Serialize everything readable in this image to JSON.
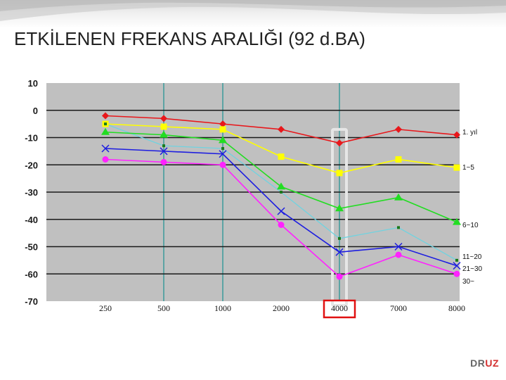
{
  "slide": {
    "title": "ETKİLENEN FREKANS ARALIĞI (92 d.BA)",
    "brand_part1": "DR",
    "brand_part2": "UZ"
  },
  "chart_data": {
    "type": "line",
    "categories": [
      "250",
      "500",
      "1000",
      "2000",
      "4000",
      "7000",
      "8000"
    ],
    "ylim": [
      -70,
      10
    ],
    "yticks": [
      "10",
      "0",
      "-10",
      "-20",
      "-30",
      "-40",
      "-50",
      "-60",
      "-70"
    ],
    "grid": true,
    "highlight_category": "4000",
    "series": [
      {
        "name": "1. yıl",
        "color": "#e8171b",
        "marker": "diamond",
        "values": [
          -2,
          -3,
          -5,
          -7,
          -12,
          -7,
          -9
        ]
      },
      {
        "name": "1~5",
        "color": "#ffff00",
        "marker": "square",
        "values": [
          -5,
          -6,
          -7,
          -17,
          -23,
          -18,
          -21
        ]
      },
      {
        "name": "6~10",
        "color": "#22dd22",
        "marker": "triangle",
        "values": [
          -8,
          -9,
          -11,
          -28,
          -36,
          -32,
          -41
        ]
      },
      {
        "name": "11~20",
        "color": "#1a7a1a",
        "marker": "dot",
        "values": [
          -5,
          -13,
          -14,
          -30,
          -47,
          -43,
          -55
        ]
      },
      {
        "name": "21~30",
        "color": "#1d1de0",
        "marker": "x",
        "values": [
          -14,
          -15,
          -16,
          -37,
          -52,
          -50,
          -57
        ]
      },
      {
        "name": "30~",
        "color": "#ff22ff",
        "marker": "circle",
        "values": [
          -18,
          -19,
          -20,
          -42,
          -61,
          -53,
          -60
        ]
      }
    ],
    "aux_series": {
      "color": "#6fd3e0",
      "values": [
        -5,
        -13,
        -14,
        -30,
        -47,
        -43,
        -55
      ]
    }
  }
}
